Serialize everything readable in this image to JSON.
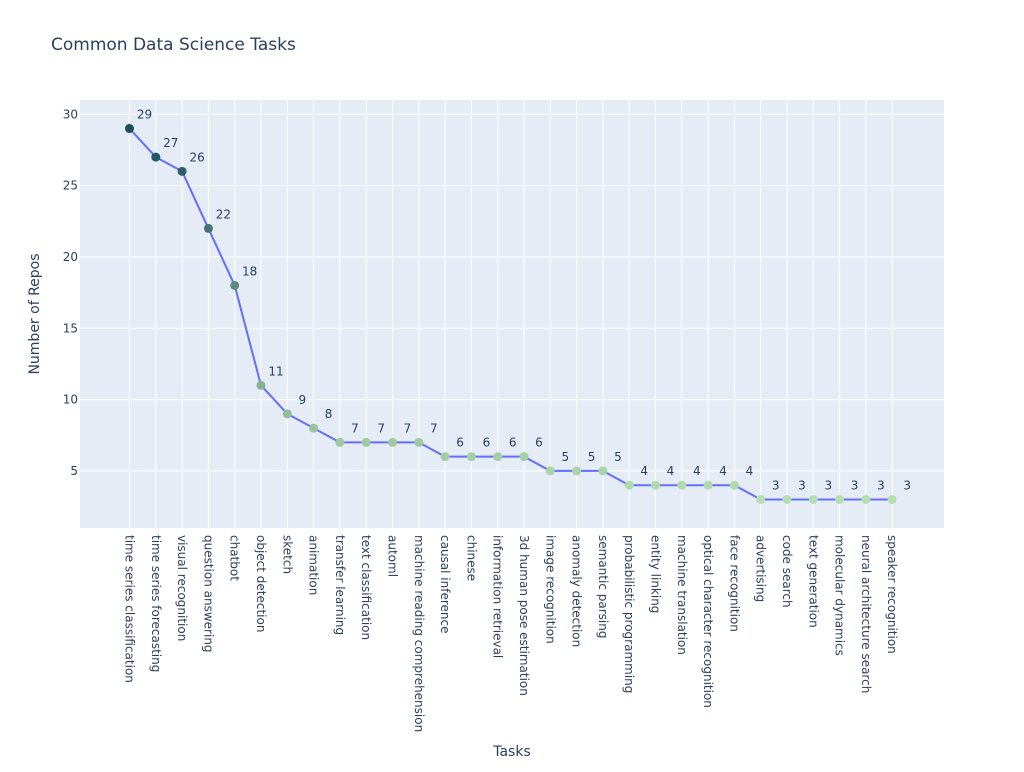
{
  "chart_data": {
    "type": "line",
    "title": "Common Data Science Tasks",
    "xlabel": "Tasks",
    "ylabel": "Number of Repos",
    "ylim": [
      1,
      31
    ],
    "yticks": [
      5,
      10,
      15,
      20,
      25,
      30
    ],
    "grid": true,
    "categories": [
      "time series classification",
      "time series forecasting",
      "visual recognition",
      "question answering",
      "chatbot",
      "object detection",
      "sketch",
      "animation",
      "transfer learning",
      "text classification",
      "automl",
      "machine reading comprehension",
      "causal inference",
      "chinese",
      "information retrieval",
      "3d human pose estimation",
      "image recognition",
      "anomaly detection",
      "semantic parsing",
      "probabilistic programming",
      "entity linking",
      "machine translation",
      "optical character recognition",
      "face recognition",
      "advertising",
      "code search",
      "text generation",
      "molecular dynamics",
      "neural architecture search",
      "speaker recognition"
    ],
    "values": [
      29,
      27,
      26,
      22,
      18,
      11,
      9,
      8,
      7,
      7,
      7,
      7,
      6,
      6,
      6,
      6,
      5,
      5,
      5,
      4,
      4,
      4,
      4,
      4,
      3,
      3,
      3,
      3,
      3,
      3
    ],
    "colors": {
      "line": "#636efa",
      "plot_bg": "#e5ecf6",
      "grid": "#ffffff",
      "marker_low": "#b6dfb0",
      "marker_high": "#1c4e5c"
    }
  }
}
